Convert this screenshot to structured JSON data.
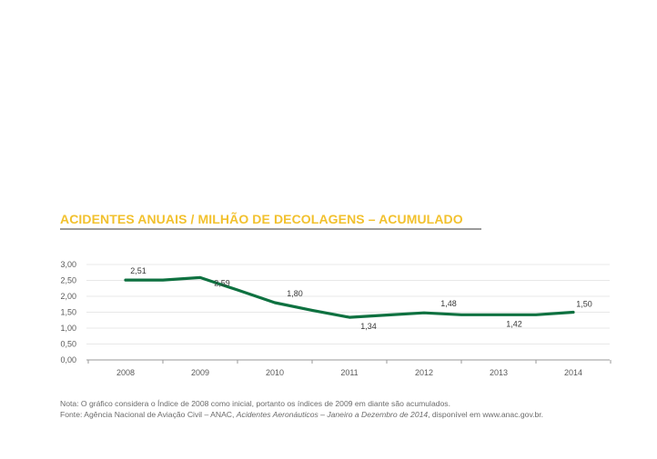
{
  "title": "ACIDENTES ANUAIS / MILHÃO DE DECOLAGENS – ACUMULADO",
  "colors": {
    "title": "#f2c12e",
    "line": "#0e7140",
    "grid": "#e8e8e8",
    "axis": "#9a9a9a",
    "text": "#5a5a5a"
  },
  "chart_data": {
    "type": "line",
    "title": "ACIDENTES ANUAIS / MILHÃO DE DECOLAGENS – ACUMULADO",
    "x": [
      2008,
      2008.5,
      2009,
      2009.5,
      2010,
      2010.5,
      2011,
      2011.5,
      2012,
      2012.5,
      2013,
      2013.5,
      2014
    ],
    "values": [
      2.51,
      2.51,
      2.59,
      2.2,
      1.8,
      1.56,
      1.34,
      1.41,
      1.48,
      1.42,
      1.42,
      1.42,
      1.5
    ],
    "categories": [
      "2008",
      "2009",
      "2010",
      "2011",
      "2012",
      "2013",
      "2014"
    ],
    "data_labels": [
      {
        "x": 2008,
        "y": 2.51,
        "text": "2,51"
      },
      {
        "x": 2009,
        "y": 2.59,
        "text": "2,59"
      },
      {
        "x": 2010,
        "y": 1.8,
        "text": "1,80"
      },
      {
        "x": 2011,
        "y": 1.34,
        "text": "1,34"
      },
      {
        "x": 2012,
        "y": 1.48,
        "text": "1,48"
      },
      {
        "x": 2013,
        "y": 1.42,
        "text": "1,42"
      },
      {
        "x": 2014,
        "y": 1.5,
        "text": "1,50"
      }
    ],
    "y_ticks": [
      "3,00",
      "2,50",
      "2,00",
      "1,50",
      "1,00",
      "0,50",
      "0,00"
    ],
    "ylim": [
      0,
      3
    ],
    "grid": true,
    "xlabel": "",
    "ylabel": ""
  },
  "note": {
    "line1": "Nota: O gráfico considera o Índice de 2008 como inicial, portanto os índices de 2009 em diante são acumulados.",
    "line2_prefix": "Fonte: Agência Nacional de Aviação Civil – ANAC, ",
    "line2_italic": "Acidentes Aeronáuticos – Janeiro a Dezembro de 2014",
    "line2_suffix": ", disponível em www.anac.gov.br."
  }
}
